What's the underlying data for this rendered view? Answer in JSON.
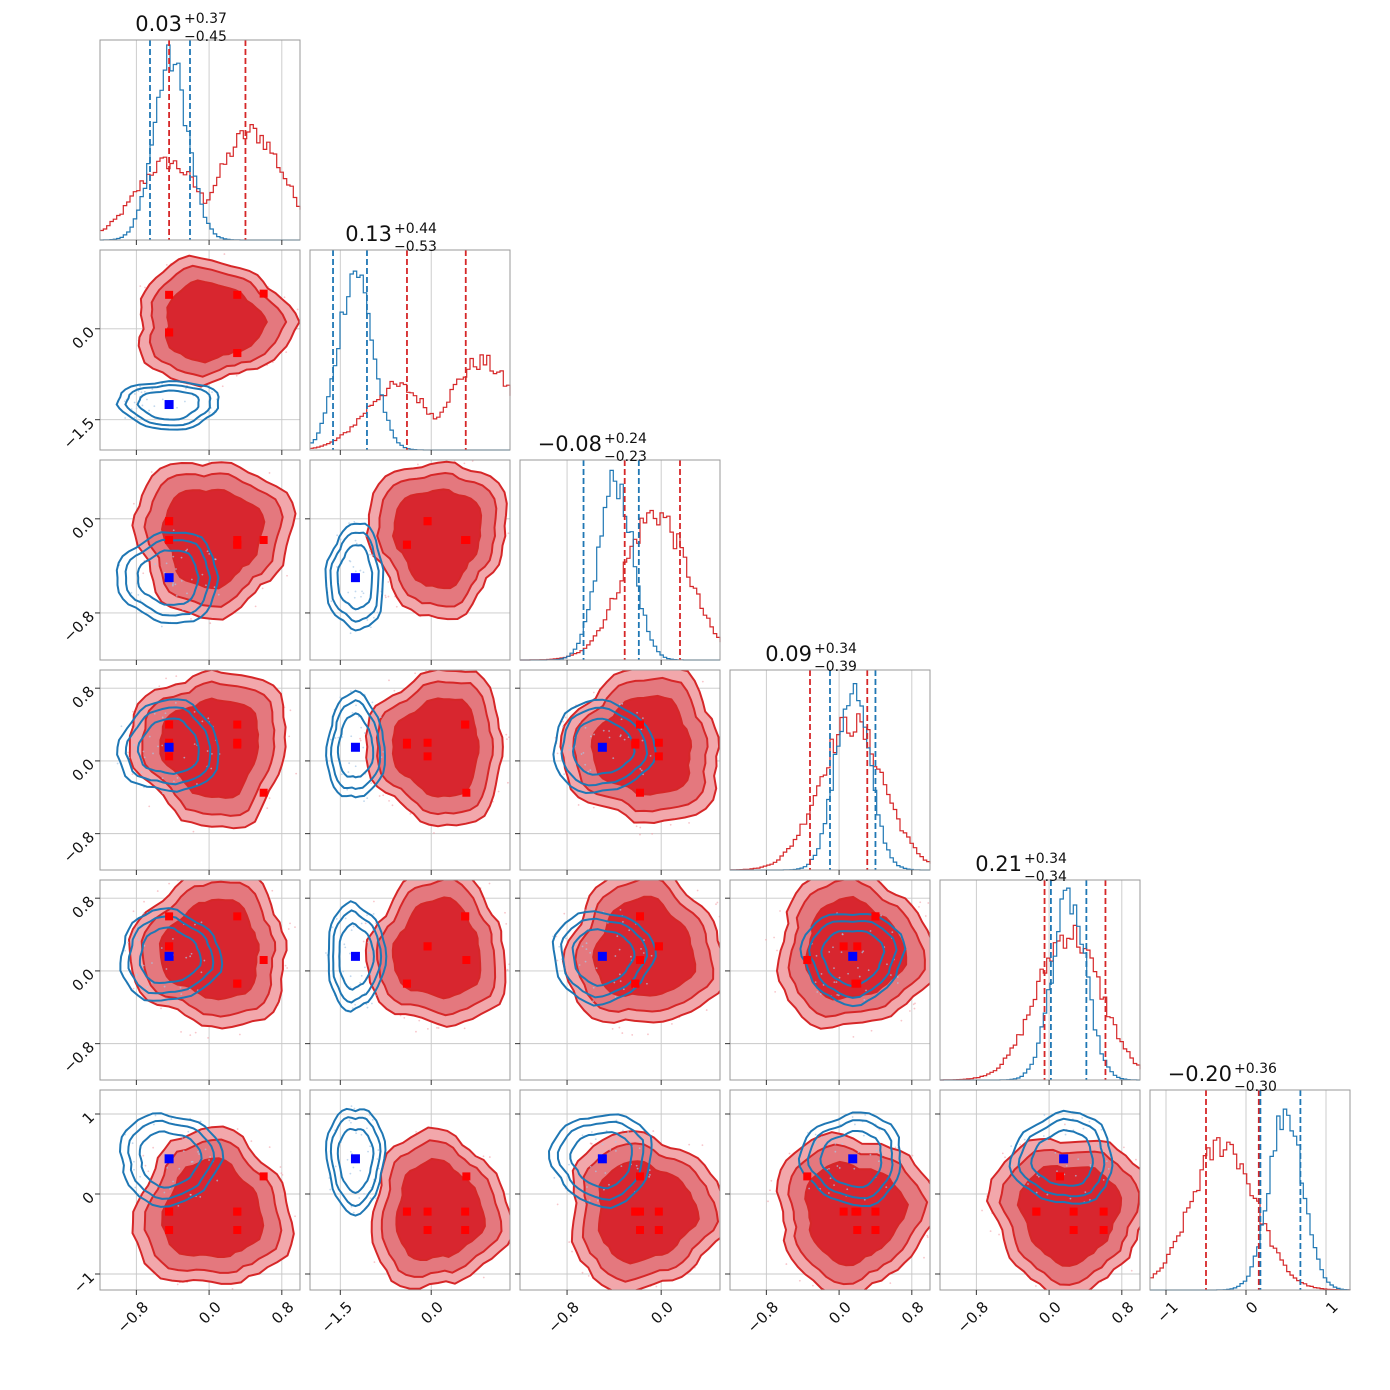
{
  "chart_data": {
    "type": "corner",
    "colors": {
      "series_a": "#d62728",
      "series_b": "#1f77b4",
      "marker_a": "#ff0000",
      "marker_b": "#0000ff"
    },
    "series": [
      {
        "color": "#d62728"
      },
      {
        "color": "#1f77b4"
      }
    ],
    "parameter_ranges": [
      [
        -1.2,
        1.0
      ],
      [
        -2.0,
        1.3
      ],
      [
        -1.2,
        0.5
      ],
      [
        -1.2,
        1.0
      ],
      [
        -1.2,
        1.0
      ],
      [
        -1.2,
        1.3
      ]
    ],
    "titles": [
      {
        "main": "0.03",
        "plus": "+0.37",
        "minus": "−0.45"
      },
      {
        "main": "0.13",
        "plus": "+0.44",
        "minus": "−0.53"
      },
      {
        "main": "−0.08",
        "plus": "+0.24",
        "minus": "−0.23"
      },
      {
        "main": "0.09",
        "plus": "+0.34",
        "minus": "−0.39"
      },
      {
        "main": "0.21",
        "plus": "+0.34",
        "minus": "−0.34"
      },
      {
        "main": "−0.20",
        "plus": "+0.36",
        "minus": "−0.30"
      }
    ],
    "ticks": [
      {
        "values": [
          -0.8,
          0.0,
          0.8
        ],
        "labels": [
          "−0.8",
          "0.0",
          "0.8"
        ]
      },
      {
        "values": [
          -1.5,
          0.0
        ],
        "labels": [
          "−1.5",
          "0.0"
        ]
      },
      {
        "values": [
          -0.8,
          0.0
        ],
        "labels": [
          "−0.8",
          "0.0"
        ]
      },
      {
        "values": [
          -0.8,
          0.0,
          0.8
        ],
        "labels": [
          "−0.8",
          "0.0",
          "0.8"
        ]
      },
      {
        "values": [
          -0.8,
          0.0,
          0.8
        ],
        "labels": [
          "−0.8",
          "0.0",
          "0.8"
        ]
      },
      {
        "values": [
          -1,
          0,
          1
        ],
        "labels": [
          "−1",
          "0",
          "1"
        ]
      }
    ],
    "y_ticks": [
      null,
      {
        "values": [
          -1.5,
          0.0
        ],
        "labels": [
          "−1.5",
          "0.0"
        ]
      },
      {
        "values": [
          -0.8,
          0.0
        ],
        "labels": [
          "−0.8",
          "0.0"
        ]
      },
      {
        "values": [
          -0.8,
          0.0,
          0.8
        ],
        "labels": [
          "−0.8",
          "0.0",
          "0.8"
        ]
      },
      {
        "values": [
          -0.8,
          0.0,
          0.8
        ],
        "labels": [
          "−0.8",
          "0.0",
          "0.8"
        ]
      },
      {
        "values": [
          -1,
          0,
          1
        ],
        "labels": [
          "−1",
          "0",
          "1"
        ]
      }
    ],
    "quantiles": {
      "series_a": [
        [
          -0.44,
          0.4
        ],
        [
          -0.4,
          0.57
        ],
        [
          -0.31,
          0.16
        ],
        [
          -0.32,
          0.31
        ],
        [
          -0.05,
          0.62
        ],
        [
          -0.5,
          0.16
        ]
      ],
      "series_b": [
        [
          -0.65,
          -0.21
        ],
        [
          -1.62,
          -1.06
        ],
        [
          -0.66,
          -0.19
        ],
        [
          -0.1,
          0.4
        ],
        [
          0.02,
          0.41
        ],
        [
          0.18,
          0.68
        ]
      ]
    },
    "modes_a": [
      [
        -0.44,
        0.6,
        -0.44,
        0.31,
        0.31,
        -0.44,
        0.31
      ],
      [
        0.56,
        0.58,
        -0.06,
        -0.4,
        0.56,
        -0.06,
        -0.4
      ],
      [
        -0.18,
        -0.18,
        -0.02,
        -0.22,
        -0.18,
        -0.02,
        -0.22
      ],
      [
        0.4,
        -0.35,
        0.2,
        0.2,
        0.4,
        0.05,
        0.18
      ],
      [
        0.6,
        0.12,
        0.27,
        -0.14,
        0.6,
        0.27,
        -0.14
      ],
      [
        -0.22,
        0.22,
        -0.45,
        -0.22,
        -0.45,
        -0.22,
        -0.22
      ]
    ],
    "mode_b": [
      -0.44,
      -1.25,
      -0.5,
      0.15,
      0.16,
      0.44
    ],
    "hist_peak": {
      "series_a": [
        0.45,
        0.8,
        -0.06,
        0.12,
        0.2,
        -0.3
      ],
      "series_b": [
        -0.44,
        -1.28,
        -0.4,
        0.13,
        0.2,
        0.48
      ]
    }
  }
}
